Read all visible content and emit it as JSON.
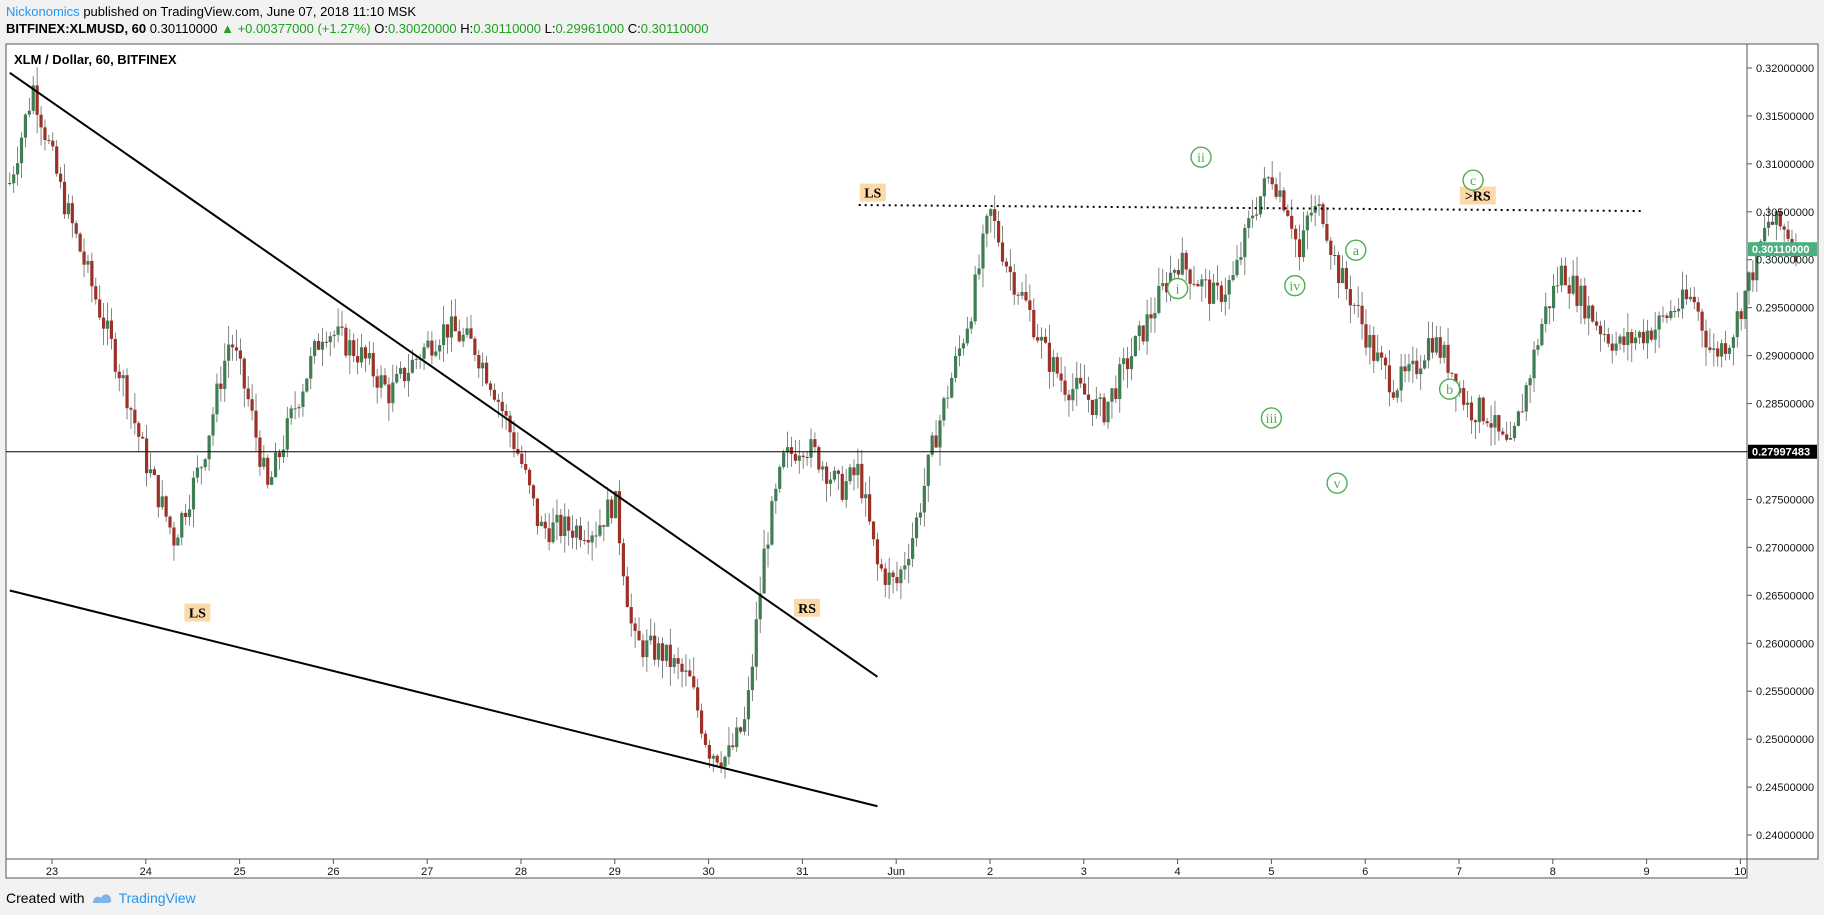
{
  "header": {
    "author": "Nickonomics",
    "published": "published on TradingView.com, June 07, 2018 11:10 MSK",
    "symbol": "BITFINEX:XLMUSD, 60",
    "last": "0.30110000",
    "change": "+0.00377000 (+1.27%)",
    "o_label": "O:",
    "o_value": "0.30020000",
    "h_label": "H:",
    "h_value": "0.30110000",
    "l_label": "L:",
    "l_value": "0.29961000",
    "c_label": "C:",
    "c_value": "0.30110000"
  },
  "footer": {
    "created_with": "Created with",
    "brand": "TradingView"
  },
  "colors": {
    "up": "#3f7d52",
    "down": "#9c3128",
    "accent": "#2196f3",
    "label_green": "#4caf50",
    "label_bg": "#fbd9a9",
    "last_price_bg": "#4caf7e"
  },
  "chart_data": {
    "type": "candlestick",
    "title": "XLM / Dollar, 60, BITFINEX",
    "ylim": [
      0.2375,
      0.3225
    ],
    "y_ticks": [
      "0.32000000",
      "0.31500000",
      "0.31000000",
      "0.30500000",
      "0.30000000",
      "0.29500000",
      "0.29000000",
      "0.28500000",
      "0.28000000",
      "0.27500000",
      "0.27000000",
      "0.26500000",
      "0.26000000",
      "0.25500000",
      "0.25000000",
      "0.24500000",
      "0.24000000"
    ],
    "x_ticks": [
      "23",
      "24",
      "25",
      "26",
      "27",
      "28",
      "29",
      "30",
      "31",
      "Jun",
      "2",
      "3",
      "4",
      "5",
      "6",
      "7",
      "8",
      "9",
      "10"
    ],
    "x_tick_days": [
      0,
      1,
      2,
      3,
      4,
      5,
      6,
      7,
      8,
      9,
      10,
      11,
      12,
      13,
      14,
      15,
      16,
      17,
      18
    ],
    "last_price": "0.30110000",
    "horizontal_line_price": "0.27997483",
    "resistance_level": 0.3056,
    "trendlines": [
      {
        "from_day": -0.45,
        "from_price": 0.3195,
        "to_day": 8.8,
        "to_price": 0.2565
      },
      {
        "from_day": -0.45,
        "from_price": 0.2655,
        "to_day": 8.8,
        "to_price": 0.243
      }
    ],
    "annotations": [
      {
        "text": "LS",
        "style": "box",
        "day": 1.55,
        "price": 0.2632
      },
      {
        "text": "RS",
        "style": "box",
        "day": 8.05,
        "price": 0.2637
      },
      {
        "text": "LS",
        "style": "box",
        "day": 8.75,
        "price": 0.307
      },
      {
        "text": ">RS",
        "style": "box",
        "day": 15.2,
        "price": 0.3067
      },
      {
        "text": "i",
        "style": "circle",
        "day": 12.0,
        "price": 0.297
      },
      {
        "text": "ii",
        "style": "circle",
        "day": 12.25,
        "price": 0.3107
      },
      {
        "text": "iii",
        "style": "circle",
        "day": 13.0,
        "price": 0.2835
      },
      {
        "text": "iv",
        "style": "circle",
        "day": 13.25,
        "price": 0.2973
      },
      {
        "text": "v",
        "style": "circle",
        "day": 13.7,
        "price": 0.2767
      },
      {
        "text": "a",
        "style": "circle",
        "day": 13.9,
        "price": 0.301
      },
      {
        "text": "b",
        "style": "circle",
        "day": 14.9,
        "price": 0.2865
      },
      {
        "text": "c",
        "style": "circle",
        "day": 15.15,
        "price": 0.3083
      }
    ],
    "price_path": [
      [
        -0.45,
        0.308
      ],
      [
        -0.2,
        0.318
      ],
      [
        0.1,
        0.307
      ],
      [
        0.5,
        0.295
      ],
      [
        0.8,
        0.286
      ],
      [
        1.0,
        0.279
      ],
      [
        1.3,
        0.271
      ],
      [
        1.6,
        0.279
      ],
      [
        1.9,
        0.292
      ],
      [
        2.1,
        0.285
      ],
      [
        2.3,
        0.276
      ],
      [
        2.6,
        0.285
      ],
      [
        2.9,
        0.293
      ],
      [
        3.3,
        0.29
      ],
      [
        3.6,
        0.286
      ],
      [
        3.9,
        0.29
      ],
      [
        4.2,
        0.293
      ],
      [
        4.5,
        0.291
      ],
      [
        4.7,
        0.287
      ],
      [
        5.0,
        0.279
      ],
      [
        5.2,
        0.272
      ],
      [
        5.5,
        0.272
      ],
      [
        5.8,
        0.272
      ],
      [
        6.0,
        0.275
      ],
      [
        6.2,
        0.26
      ],
      [
        6.5,
        0.259
      ],
      [
        6.8,
        0.256
      ],
      [
        7.0,
        0.249
      ],
      [
        7.2,
        0.248
      ],
      [
        7.4,
        0.252
      ],
      [
        7.6,
        0.27
      ],
      [
        7.8,
        0.279
      ],
      [
        8.0,
        0.281
      ],
      [
        8.2,
        0.279
      ],
      [
        8.4,
        0.276
      ],
      [
        8.6,
        0.278
      ],
      [
        8.8,
        0.268
      ],
      [
        9.0,
        0.266
      ],
      [
        9.2,
        0.272
      ],
      [
        9.4,
        0.281
      ],
      [
        9.6,
        0.288
      ],
      [
        9.8,
        0.295
      ],
      [
        10.0,
        0.305
      ],
      [
        10.2,
        0.299
      ],
      [
        10.4,
        0.295
      ],
      [
        10.6,
        0.29
      ],
      [
        10.8,
        0.287
      ],
      [
        11.0,
        0.286
      ],
      [
        11.2,
        0.284
      ],
      [
        11.4,
        0.288
      ],
      [
        11.6,
        0.292
      ],
      [
        11.8,
        0.296
      ],
      [
        12.0,
        0.3
      ],
      [
        12.2,
        0.298
      ],
      [
        12.4,
        0.296
      ],
      [
        12.6,
        0.298
      ],
      [
        12.8,
        0.305
      ],
      [
        13.0,
        0.309
      ],
      [
        13.2,
        0.305
      ],
      [
        13.3,
        0.3
      ],
      [
        13.4,
        0.305
      ],
      [
        13.55,
        0.305
      ],
      [
        13.7,
        0.299
      ],
      [
        13.9,
        0.295
      ],
      [
        14.1,
        0.29
      ],
      [
        14.3,
        0.287
      ],
      [
        14.5,
        0.288
      ],
      [
        14.7,
        0.292
      ],
      [
        14.9,
        0.289
      ],
      [
        15.1,
        0.2845
      ],
      [
        15.3,
        0.284
      ],
      [
        15.45,
        0.281
      ],
      [
        15.55,
        0.28
      ],
      [
        15.7,
        0.286
      ],
      [
        15.9,
        0.294
      ],
      [
        16.1,
        0.299
      ],
      [
        16.3,
        0.296
      ],
      [
        16.5,
        0.293
      ],
      [
        16.7,
        0.291
      ],
      [
        16.9,
        0.292
      ],
      [
        17.1,
        0.293
      ],
      [
        17.3,
        0.295
      ],
      [
        17.5,
        0.296
      ],
      [
        17.7,
        0.29
      ],
      [
        17.9,
        0.292
      ],
      [
        18.1,
        0.298
      ],
      [
        18.3,
        0.304
      ],
      [
        18.5,
        0.303
      ],
      [
        18.6,
        0.3011
      ]
    ]
  }
}
